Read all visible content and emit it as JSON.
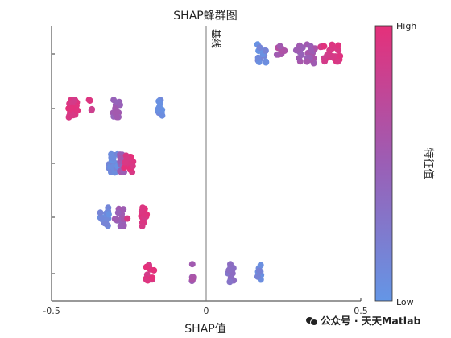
{
  "chart_data": {
    "type": "scatter",
    "title": "SHAP蜂群图",
    "xlabel": "SHAP值",
    "xlim": [
      -0.5,
      0.5
    ],
    "xticks": [
      "-0.5",
      "0",
      "0.5"
    ],
    "baseline": {
      "x": 0,
      "label": "基线"
    },
    "colorbar": {
      "label": "特征值",
      "high": "High",
      "low": "Low",
      "color_high": "#e5307a",
      "color_mid": "#9b5eb5",
      "color_low": "#6496e6"
    },
    "rows": [
      {
        "row": 1,
        "clusters": [
          {
            "x": 0.18,
            "spread": 0.015,
            "n": 14,
            "value": 0.1
          },
          {
            "x": 0.24,
            "spread": 0.015,
            "n": 8,
            "value": 0.6
          },
          {
            "x": 0.3,
            "spread": 0.015,
            "n": 10,
            "value": 0.5
          },
          {
            "x": 0.34,
            "spread": 0.015,
            "n": 14,
            "value": 0.55
          },
          {
            "x": 0.39,
            "spread": 0.02,
            "n": 16,
            "value": 0.9
          },
          {
            "x": 0.42,
            "spread": 0.015,
            "n": 10,
            "value": 0.95
          }
        ]
      },
      {
        "row": 2,
        "clusters": [
          {
            "x": -0.43,
            "spread": 0.015,
            "n": 22,
            "value": 0.95
          },
          {
            "x": -0.37,
            "spread": 0.01,
            "n": 4,
            "value": 0.9
          },
          {
            "x": -0.29,
            "spread": 0.012,
            "n": 18,
            "value": 0.5
          },
          {
            "x": -0.15,
            "spread": 0.008,
            "n": 14,
            "value": 0.08
          }
        ]
      },
      {
        "row": 3,
        "clusters": [
          {
            "x": -0.3,
            "spread": 0.015,
            "n": 22,
            "value": 0.1
          },
          {
            "x": -0.27,
            "spread": 0.01,
            "n": 12,
            "value": 0.5
          },
          {
            "x": -0.25,
            "spread": 0.015,
            "n": 16,
            "value": 0.95
          }
        ]
      },
      {
        "row": 4,
        "clusters": [
          {
            "x": -0.33,
            "spread": 0.015,
            "n": 16,
            "value": 0.1
          },
          {
            "x": -0.28,
            "spread": 0.015,
            "n": 14,
            "value": 0.5
          },
          {
            "x": -0.2,
            "spread": 0.01,
            "n": 16,
            "value": 0.95
          },
          {
            "x": -0.255,
            "spread": 0.003,
            "n": 1,
            "value": 0.95
          }
        ]
      },
      {
        "row": 5,
        "clusters": [
          {
            "x": -0.18,
            "spread": 0.015,
            "n": 16,
            "value": 0.95
          },
          {
            "x": -0.045,
            "spread": 0.003,
            "n": 7,
            "value": 0.55
          },
          {
            "x": 0.08,
            "spread": 0.01,
            "n": 14,
            "value": 0.35
          },
          {
            "x": 0.17,
            "spread": 0.008,
            "n": 10,
            "value": 0.1
          }
        ]
      }
    ]
  },
  "watermark": "公众号 · 天天Matlab"
}
